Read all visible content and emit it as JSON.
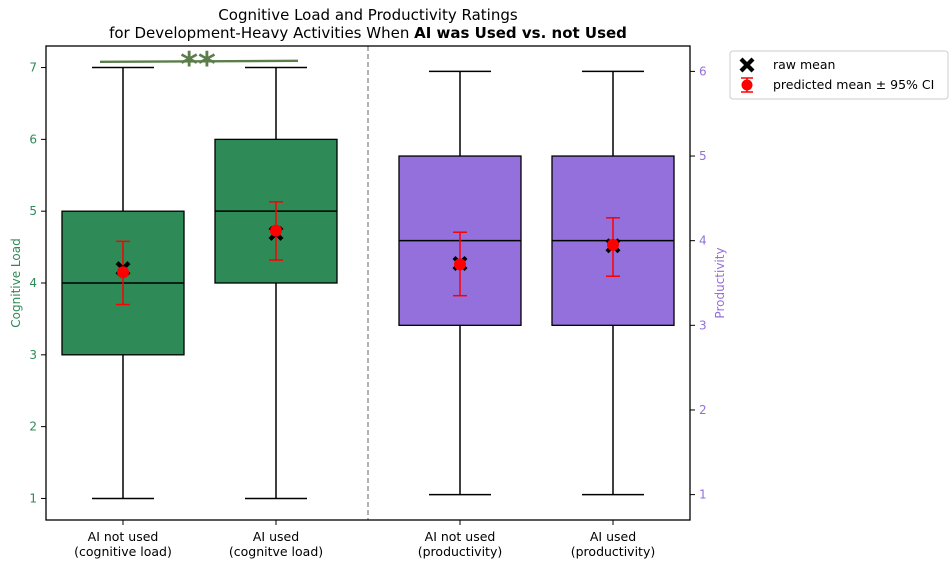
{
  "chart_data": {
    "type": "box",
    "title_line1": "Cognitive Load and Productivity Ratings",
    "title_line2_prefix": "for Development-Heavy Activities When ",
    "title_line2_bold": "AI was Used vs.  not Used",
    "left_axis": {
      "label": "Cognitive Load",
      "ylim": [
        0.7,
        7.3
      ],
      "ticks": [
        "1",
        "2",
        "3",
        "4",
        "5",
        "6",
        "7"
      ],
      "color": "#2e8b57"
    },
    "right_axis": {
      "label": "Productivity",
      "ylim": [
        0.7,
        6.3
      ],
      "ticks": [
        "1",
        "2",
        "3",
        "4",
        "5",
        "6"
      ],
      "color": "#9370db"
    },
    "categories": [
      {
        "line1": "AI not used",
        "line2": "(cognitive load)"
      },
      {
        "line1": "AI used",
        "line2": "(cognitve load)"
      },
      {
        "line1": "AI not used",
        "line2": "(productivity)"
      },
      {
        "line1": "AI used",
        "line2": "(productivity)"
      }
    ],
    "boxes": [
      {
        "axis": "left",
        "whisker_low": 1,
        "q1": 3,
        "median": 4,
        "q3": 5,
        "whisker_high": 7,
        "raw_mean": 4.2,
        "pred_mean": 4.15,
        "ci_low": 3.7,
        "ci_high": 4.58,
        "color": "#2e8b57"
      },
      {
        "axis": "left",
        "whisker_low": 1,
        "q1": 4,
        "median": 5,
        "q3": 6,
        "whisker_high": 7,
        "raw_mean": 4.69,
        "pred_mean": 4.73,
        "ci_low": 4.32,
        "ci_high": 5.13,
        "color": "#2e8b57"
      },
      {
        "axis": "right",
        "whisker_low": 1,
        "q1": 3,
        "median": 4,
        "q3": 5,
        "whisker_high": 6,
        "raw_mean": 3.73,
        "pred_mean": 3.72,
        "ci_low": 3.35,
        "ci_high": 4.1,
        "color": "#9370db"
      },
      {
        "axis": "right",
        "whisker_low": 1,
        "q1": 3,
        "median": 4,
        "q3": 5,
        "whisker_high": 6,
        "raw_mean": 3.94,
        "pred_mean": 3.95,
        "ci_low": 3.58,
        "ci_high": 4.27,
        "color": "#9370db"
      }
    ],
    "significance": {
      "label": "**",
      "level": 7.08,
      "color": "#5a7d4a"
    },
    "legend": {
      "position": "upper-right outside",
      "raw_mean": "raw mean",
      "predicted": "predicted mean ± 95% CI"
    }
  }
}
